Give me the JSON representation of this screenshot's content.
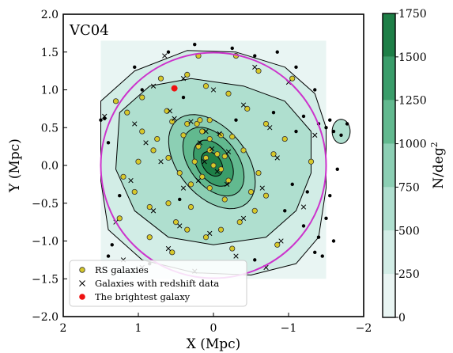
{
  "chart_data": {
    "type": "contour-scatter",
    "annotation": "VC04",
    "xlabel": "X (Mpc)",
    "ylabel": "Y (Mpc)",
    "xlim": [
      2,
      -2
    ],
    "ylim": [
      -2,
      2
    ],
    "x_ticks": [
      {
        "v": 2,
        "label": "2"
      },
      {
        "v": 1,
        "label": "1"
      },
      {
        "v": 0,
        "label": "0"
      },
      {
        "v": -1,
        "label": "−1"
      },
      {
        "v": -2,
        "label": "−2"
      }
    ],
    "y_ticks": [
      {
        "v": -2,
        "label": "−2.0"
      },
      {
        "v": -1.5,
        "label": "−1.5"
      },
      {
        "v": -1,
        "label": "−1.0"
      },
      {
        "v": -0.5,
        "label": "−0.5"
      },
      {
        "v": 0,
        "label": "0.0"
      },
      {
        "v": 0.5,
        "label": "0.5"
      },
      {
        "v": 1,
        "label": "1.0"
      },
      {
        "v": 1.5,
        "label": "1.5"
      },
      {
        "v": 2,
        "label": "2.0"
      }
    ],
    "density_levels": [
      250,
      500,
      750,
      1000,
      1250,
      1500,
      1750
    ],
    "colorbar": {
      "label": "N/deg²",
      "label_main": "N/deg",
      "label_sup": "2",
      "range": [
        0,
        1750
      ],
      "ticks": [
        {
          "v": 0,
          "label": "0"
        },
        {
          "v": 250,
          "label": "250"
        },
        {
          "v": 500,
          "label": "500"
        },
        {
          "v": 750,
          "label": "750"
        },
        {
          "v": 1000,
          "label": "1000"
        },
        {
          "v": 1250,
          "label": "1250"
        },
        {
          "v": 1500,
          "label": "1500"
        },
        {
          "v": 1750,
          "label": "1750"
        }
      ],
      "colors": [
        "#e9f5f3",
        "#d2ede6",
        "#afdfcf",
        "#8ccfb4",
        "#62b98f",
        "#3a9d6a",
        "#1e7f47",
        "#0b5e2c"
      ]
    },
    "circle": {
      "center": [
        0,
        0
      ],
      "radius_mpc": 1.5,
      "color": "#cc33cc"
    },
    "brightest_galaxy": {
      "x": 0.52,
      "y": 1.02
    },
    "rs_galaxies": [
      [
        0.62,
        0.72
      ],
      [
        0.55,
        0.58
      ],
      [
        0.35,
        0.55
      ],
      [
        0.22,
        0.55
      ],
      [
        0.18,
        0.6
      ],
      [
        0.15,
        0.45
      ],
      [
        0.4,
        0.4
      ],
      [
        0.05,
        0.35
      ],
      [
        -0.1,
        0.4
      ],
      [
        -0.25,
        0.38
      ],
      [
        0.2,
        0.25
      ],
      [
        0.05,
        0.2
      ],
      [
        -0.05,
        0.15
      ],
      [
        0.1,
        0.1
      ],
      [
        -0.15,
        0.12
      ],
      [
        0.25,
        0.05
      ],
      [
        0.0,
        0.0
      ],
      [
        -0.1,
        -0.05
      ],
      [
        0.15,
        -0.15
      ],
      [
        -0.2,
        -0.2
      ],
      [
        0.05,
        -0.3
      ],
      [
        0.3,
        -0.25
      ],
      [
        0.45,
        -0.1
      ],
      [
        0.6,
        0.1
      ],
      [
        0.8,
        0.2
      ],
      [
        0.95,
        0.45
      ],
      [
        1.0,
        0.05
      ],
      [
        1.2,
        -0.15
      ],
      [
        1.05,
        -0.35
      ],
      [
        0.85,
        -0.55
      ],
      [
        0.6,
        -0.5
      ],
      [
        0.5,
        -0.75
      ],
      [
        0.35,
        -0.85
      ],
      [
        0.1,
        -0.95
      ],
      [
        -0.1,
        -0.85
      ],
      [
        -0.35,
        -0.75
      ],
      [
        -0.55,
        -0.6
      ],
      [
        -0.7,
        -0.4
      ],
      [
        -0.6,
        -0.1
      ],
      [
        -0.8,
        0.15
      ],
      [
        -0.95,
        0.35
      ],
      [
        -0.7,
        0.55
      ],
      [
        -0.45,
        0.75
      ],
      [
        -0.2,
        0.95
      ],
      [
        0.1,
        1.05
      ],
      [
        0.35,
        1.2
      ],
      [
        0.7,
        1.15
      ],
      [
        0.95,
        0.9
      ],
      [
        1.15,
        0.7
      ],
      [
        -1.05,
        1.15
      ],
      [
        -0.6,
        1.25
      ],
      [
        0.85,
        -0.95
      ],
      [
        0.55,
        -1.15
      ],
      [
        -0.25,
        -1.1
      ],
      [
        -0.85,
        -1.05
      ],
      [
        1.25,
        -0.7
      ],
      [
        -1.3,
        0.05
      ],
      [
        -0.3,
        1.45
      ],
      [
        0.2,
        1.45
      ],
      [
        1.3,
        0.85
      ],
      [
        0.75,
        0.35
      ],
      [
        -0.4,
        0.2
      ],
      [
        0.3,
        -0.55
      ],
      [
        -0.5,
        -0.35
      ],
      [
        0.05,
        0.6
      ],
      [
        -0.15,
        -0.45
      ]
    ],
    "redshift_galaxies": [
      [
        0.58,
        0.72
      ],
      [
        0.52,
        0.62
      ],
      [
        0.3,
        0.58
      ],
      [
        0.1,
        0.45
      ],
      [
        -0.08,
        0.42
      ],
      [
        0.18,
        0.3
      ],
      [
        0.02,
        0.22
      ],
      [
        -0.2,
        0.18
      ],
      [
        0.12,
        0.05
      ],
      [
        -0.05,
        -0.08
      ],
      [
        0.2,
        -0.2
      ],
      [
        -0.18,
        -0.25
      ],
      [
        0.4,
        -0.3
      ],
      [
        0.7,
        0.05
      ],
      [
        0.9,
        0.3
      ],
      [
        1.1,
        -0.2
      ],
      [
        0.8,
        -0.6
      ],
      [
        0.45,
        -0.8
      ],
      [
        0.05,
        -0.9
      ],
      [
        -0.4,
        -0.7
      ],
      [
        -0.65,
        -0.3
      ],
      [
        -0.85,
        0.1
      ],
      [
        -0.75,
        0.5
      ],
      [
        -0.4,
        0.8
      ],
      [
        0.0,
        1.0
      ],
      [
        0.4,
        1.15
      ],
      [
        0.8,
        1.05
      ],
      [
        1.05,
        0.55
      ],
      [
        -1.0,
        1.1
      ],
      [
        -0.55,
        1.3
      ],
      [
        0.6,
        -1.1
      ],
      [
        -0.3,
        -1.2
      ],
      [
        -0.9,
        -1.0
      ],
      [
        1.3,
        -0.75
      ],
      [
        1.45,
        0.65
      ],
      [
        1.2,
        -1.25
      ],
      [
        -1.2,
        -0.55
      ],
      [
        -1.35,
        0.4
      ],
      [
        0.65,
        1.45
      ],
      [
        -0.7,
        -1.35
      ],
      [
        0.25,
        -1.4
      ],
      [
        0.95,
        -1.35
      ]
    ],
    "other_galaxies": [
      [
        1.5,
        0.6
      ],
      [
        1.45,
        0.62
      ],
      [
        1.4,
        -1.2
      ],
      [
        1.35,
        -1.05
      ],
      [
        -1.55,
        0.6
      ],
      [
        -1.6,
        0.45
      ],
      [
        -1.5,
        0.5
      ],
      [
        -1.4,
        0.55
      ],
      [
        -1.65,
        -0.05
      ],
      [
        -1.55,
        -0.4
      ],
      [
        -1.5,
        -0.7
      ],
      [
        -1.4,
        -0.95
      ],
      [
        -1.45,
        -1.2
      ],
      [
        -1.35,
        -1.15
      ],
      [
        -1.7,
        0.4
      ],
      [
        -1.78,
        0.55
      ],
      [
        -1.2,
        0.65
      ],
      [
        -1.1,
        0.45
      ],
      [
        -1.25,
        -0.35
      ],
      [
        -1.2,
        -0.8
      ],
      [
        -0.95,
        -0.6
      ],
      [
        -0.55,
        1.45
      ],
      [
        -0.25,
        1.55
      ],
      [
        0.25,
        1.6
      ],
      [
        0.6,
        1.5
      ],
      [
        -1.1,
        1.3
      ],
      [
        1.05,
        1.3
      ],
      [
        1.25,
        -0.4
      ],
      [
        -0.55,
        -1.25
      ],
      [
        0.85,
        -1.3
      ],
      [
        -1.05,
        -0.25
      ],
      [
        -0.8,
        0.7
      ],
      [
        0.95,
        1.0
      ],
      [
        -0.3,
        0.6
      ],
      [
        0.45,
        -0.45
      ],
      [
        -1.35,
        1.0
      ],
      [
        1.4,
        0.3
      ],
      [
        -0.85,
        1.5
      ],
      [
        0.4,
        0.9
      ],
      [
        -1.6,
        -1.0
      ]
    ],
    "legend": {
      "placement": "lower-left",
      "entries": [
        {
          "label": "RS galaxies",
          "marker": "circle-yellow"
        },
        {
          "label": "Galaxies with redshift data",
          "marker": "x-black"
        },
        {
          "label": "The brightest galaxy",
          "marker": "circle-red"
        }
      ]
    }
  }
}
